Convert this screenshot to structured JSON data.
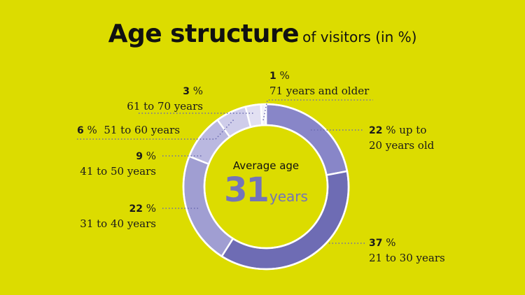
{
  "title": {
    "main": "Age structure",
    "sub": "of visitors (in %)"
  },
  "center": {
    "label": "Average age",
    "value": "31",
    "unit": "years"
  },
  "colors": {
    "background": "#dcdc00",
    "accent": "#7474b8"
  },
  "labels": {
    "s0": {
      "pct": "22",
      "pct_suffix": " % up to",
      "text": "20 years old"
    },
    "s1": {
      "pct": "37",
      "pct_suffix": " %",
      "text": "21 to 30 years"
    },
    "s2": {
      "pct": "22",
      "pct_suffix": " %",
      "text": "31 to 40 years"
    },
    "s3": {
      "pct": "9",
      "pct_suffix": " %",
      "text": "41 to 50 years"
    },
    "s4": {
      "pct": "6",
      "pct_suffix": " %",
      "text": "51 to 60 years"
    },
    "s5": {
      "pct": "3",
      "pct_suffix": " %",
      "text": "61 to 70 years"
    },
    "s6": {
      "pct": "1",
      "pct_suffix": " %",
      "text": "71 years and older"
    }
  },
  "chart_data": {
    "type": "pie",
    "variant": "donut",
    "title": "Age structure of visitors (in %)",
    "categories": [
      "up to 20 years old",
      "21 to 30 years",
      "31 to 40 years",
      "41 to 50 years",
      "51 to 60 years",
      "61 to 70 years",
      "71 years and older"
    ],
    "values": [
      22,
      37,
      22,
      9,
      6,
      3,
      1
    ],
    "colors": [
      "#8886c8",
      "#6e6cb4",
      "#a09ed2",
      "#bab8e0",
      "#cfcdea",
      "#e2e0f2",
      "#f3f2fa"
    ],
    "start_angle": "12 o'clock, clockwise",
    "center_annotation": "Average age 31 years",
    "legend": "none (direct labels)"
  }
}
